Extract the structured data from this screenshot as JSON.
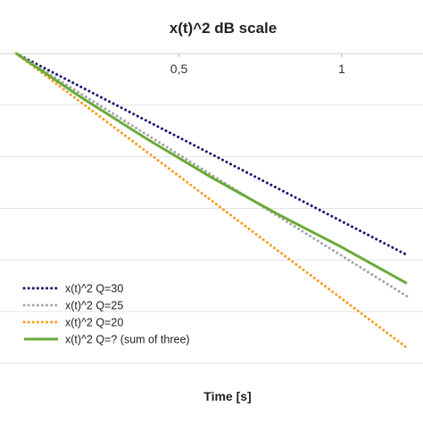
{
  "chart_data": {
    "type": "line",
    "title": "x(t)^2 dB scale",
    "xlabel": "Time [s]",
    "ylabel": "",
    "x_ticks": [
      "0,5",
      "1"
    ],
    "xlim": [
      -0.05,
      1.25
    ],
    "ylim": [
      -60,
      0
    ],
    "grid": true,
    "legend_position": "bottom-left",
    "series": [
      {
        "name": "x(t)^2 Q=30",
        "style": "dotted",
        "color": "#1a1a6e",
        "x": [
          0,
          1.2
        ],
        "y": [
          0,
          -39
        ]
      },
      {
        "name": "x(t)^2 Q=25",
        "style": "dotted",
        "color": "#a6a6a6",
        "x": [
          0,
          1.2
        ],
        "y": [
          0,
          -47
        ]
      },
      {
        "name": "x(t)^2 Q=20",
        "style": "dotted",
        "color": "#f0a020",
        "x": [
          0,
          1.2
        ],
        "y": [
          0,
          -57
        ]
      },
      {
        "name": "x(t)^2 Q=? (sum of three)",
        "style": "solid",
        "color": "#6aaa3a",
        "x": [
          0,
          0.2,
          0.4,
          0.6,
          0.8,
          1.0,
          1.2
        ],
        "y": [
          0,
          -8.5,
          -16.5,
          -24,
          -31,
          -37.5,
          -44.5
        ]
      }
    ]
  }
}
